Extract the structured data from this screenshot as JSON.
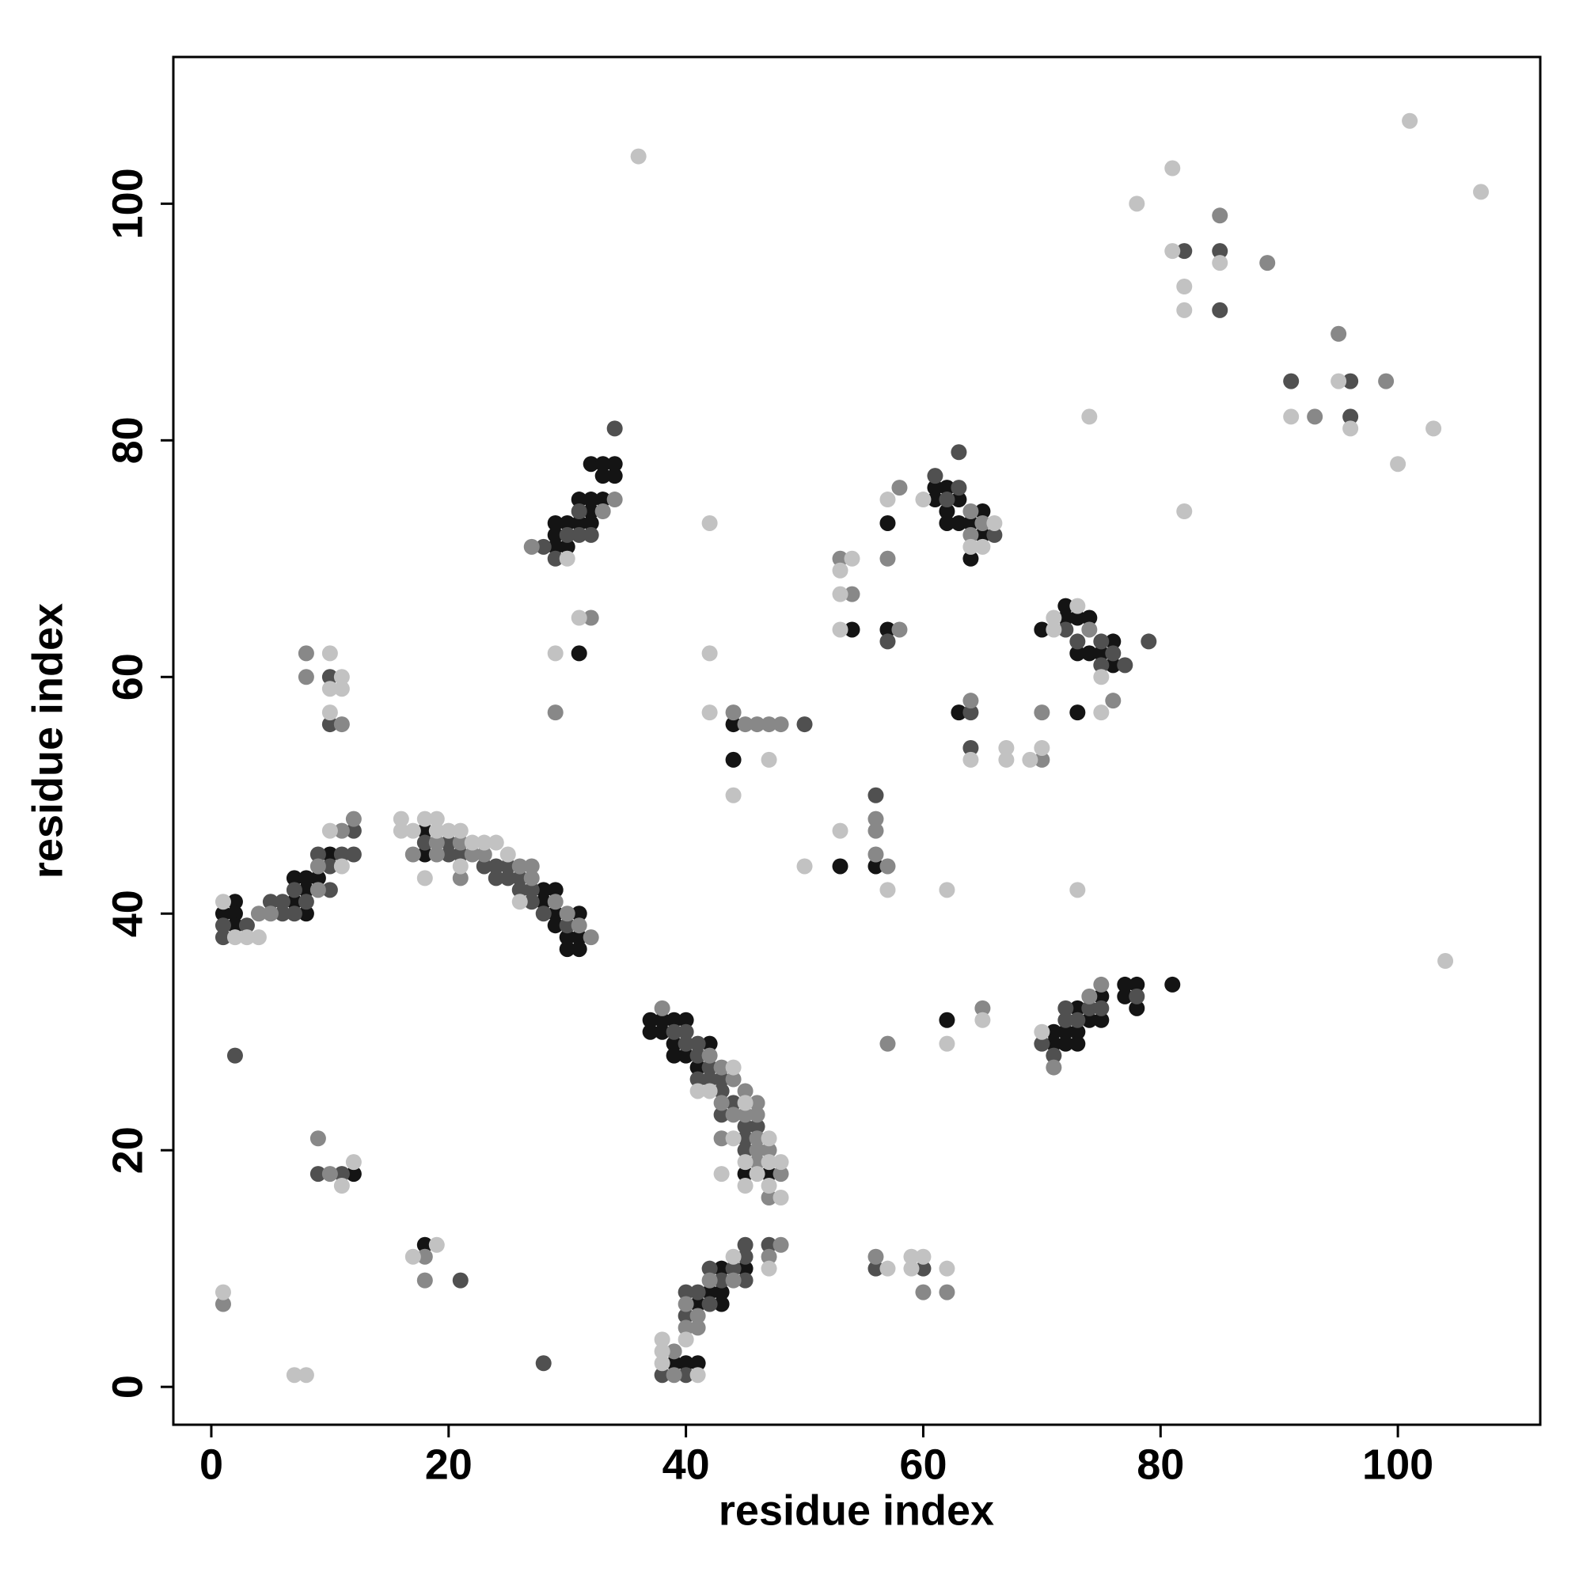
{
  "chart_data": {
    "type": "scatter",
    "x_label": "residue index",
    "y_label": "residue index",
    "xlim": [
      -3.2,
      112
    ],
    "ylim": [
      -3.2,
      112.4
    ],
    "xticks": [
      0,
      20,
      40,
      60,
      80,
      100
    ],
    "yticks": [
      0,
      20,
      40,
      60,
      80,
      100
    ],
    "series": [
      {
        "color": "#141414",
        "x": [
          1,
          2,
          2,
          2,
          7,
          7,
          8,
          8,
          8,
          9,
          10,
          18,
          18,
          28,
          28,
          29,
          29,
          29,
          30,
          30,
          31,
          31,
          31,
          12,
          18,
          29,
          29,
          29,
          30,
          30,
          31,
          31,
          32,
          32,
          32,
          32,
          33,
          33,
          33,
          34,
          34,
          31,
          37,
          37,
          38,
          38,
          39,
          39,
          39,
          40,
          40,
          41,
          42,
          45,
          47,
          39,
          40,
          41,
          41,
          42,
          43,
          43,
          43,
          45,
          44,
          44,
          54,
          53,
          56,
          57,
          57,
          61,
          61,
          62,
          62,
          62,
          63,
          63,
          64,
          64,
          65,
          65,
          62,
          63,
          70,
          72,
          72,
          73,
          73,
          73,
          74,
          74,
          75,
          76,
          76,
          71,
          71,
          72,
          72,
          73,
          73,
          73,
          74,
          75,
          75,
          77,
          77,
          78,
          78,
          81
        ],
        "y": [
          40,
          41,
          40,
          39,
          43,
          41,
          43,
          42,
          40,
          43,
          45,
          47,
          45,
          42,
          41,
          42,
          40,
          39,
          38,
          37,
          40,
          38,
          37,
          18,
          12,
          73,
          72,
          71,
          73,
          71,
          75,
          73,
          75,
          74,
          73,
          78,
          78,
          77,
          75,
          78,
          77,
          62,
          31,
          30,
          31,
          30,
          31,
          29,
          28,
          31,
          28,
          27,
          29,
          18,
          18,
          2,
          2,
          7,
          2,
          8,
          10,
          8,
          7,
          10,
          56,
          53,
          64,
          44,
          44,
          73,
          64,
          76,
          75,
          76,
          74,
          73,
          75,
          73,
          73,
          70,
          74,
          72,
          31,
          57,
          64,
          66,
          65,
          65,
          62,
          57,
          65,
          62,
          62,
          63,
          61,
          30,
          29,
          30,
          29,
          32,
          30,
          29,
          31,
          33,
          31,
          34,
          33,
          34,
          32,
          34
        ]
      },
      {
        "color": "#505050",
        "x": [
          1,
          1,
          3,
          5,
          6,
          6,
          7,
          7,
          8,
          9,
          10,
          10,
          11,
          12,
          12,
          18,
          20,
          20,
          21,
          23,
          24,
          24,
          25,
          25,
          26,
          26,
          27,
          27,
          28,
          30,
          10,
          10,
          2,
          9,
          11,
          21,
          28,
          28,
          29,
          30,
          31,
          31,
          32,
          34,
          39,
          40,
          40,
          41,
          41,
          41,
          42,
          42,
          43,
          43,
          43,
          44,
          45,
          45,
          45,
          46,
          38,
          40,
          40,
          40,
          41,
          42,
          42,
          43,
          44,
          45,
          45,
          45,
          47,
          50,
          56,
          57,
          61,
          62,
          63,
          63,
          66,
          60,
          56,
          64,
          64,
          72,
          73,
          75,
          75,
          76,
          77,
          79,
          70,
          71,
          72,
          72,
          73,
          74,
          75,
          78,
          82,
          85,
          85,
          91,
          96,
          96
        ],
        "y": [
          39,
          38,
          39,
          41,
          41,
          40,
          42,
          40,
          41,
          45,
          44,
          42,
          45,
          47,
          45,
          46,
          46,
          45,
          45,
          44,
          44,
          43,
          44,
          43,
          43,
          42,
          42,
          41,
          40,
          39,
          60,
          56,
          28,
          18,
          18,
          9,
          2,
          71,
          70,
          72,
          74,
          72,
          72,
          81,
          30,
          30,
          29,
          29,
          28,
          26,
          27,
          26,
          26,
          25,
          23,
          24,
          22,
          21,
          20,
          22,
          1,
          8,
          6,
          1,
          8,
          10,
          7,
          9,
          10,
          12,
          11,
          9,
          12,
          56,
          50,
          63,
          77,
          75,
          79,
          76,
          72,
          10,
          10,
          57,
          54,
          64,
          63,
          63,
          61,
          62,
          61,
          63,
          29,
          28,
          32,
          31,
          31,
          32,
          32,
          33,
          96,
          96,
          91,
          85,
          85,
          82
        ]
      },
      {
        "color": "#888888",
        "x": [
          4,
          5,
          9,
          9,
          11,
          12,
          17,
          19,
          19,
          21,
          21,
          22,
          23,
          26,
          27,
          27,
          29,
          30,
          31,
          32,
          8,
          8,
          11,
          1,
          9,
          10,
          18,
          18,
          29,
          27,
          33,
          34,
          32,
          38,
          42,
          43,
          43,
          43,
          44,
          44,
          45,
          45,
          46,
          46,
          46,
          46,
          46,
          47,
          47,
          48,
          39,
          39,
          40,
          40,
          41,
          41,
          42,
          44,
          47,
          48,
          44,
          45,
          46,
          47,
          48,
          53,
          54,
          56,
          56,
          56,
          57,
          57,
          58,
          58,
          57,
          64,
          64,
          65,
          60,
          56,
          62,
          65,
          64,
          70,
          70,
          74,
          76,
          71,
          74,
          75,
          85,
          89,
          93,
          95,
          99
        ],
        "y": [
          40,
          40,
          44,
          42,
          47,
          48,
          45,
          46,
          45,
          46,
          43,
          45,
          45,
          44,
          44,
          43,
          41,
          40,
          39,
          38,
          62,
          60,
          56,
          7,
          21,
          18,
          11,
          9,
          57,
          71,
          74,
          75,
          65,
          32,
          28,
          27,
          24,
          21,
          26,
          23,
          25,
          23,
          24,
          23,
          21,
          20,
          19,
          20,
          16,
          18,
          3,
          1,
          7,
          5,
          6,
          5,
          9,
          9,
          11,
          12,
          57,
          56,
          56,
          56,
          56,
          70,
          67,
          48,
          47,
          45,
          44,
          70,
          76,
          64,
          29,
          74,
          72,
          73,
          8,
          11,
          8,
          32,
          58,
          57,
          53,
          64,
          58,
          27,
          33,
          34,
          99,
          95,
          82,
          89,
          85
        ]
      },
      {
        "color": "#c2c2c2",
        "x": [
          1,
          2,
          3,
          4,
          10,
          11,
          16,
          16,
          17,
          18,
          18,
          19,
          19,
          20,
          21,
          21,
          22,
          23,
          24,
          25,
          26,
          10,
          10,
          10,
          11,
          11,
          11,
          12,
          1,
          7,
          8,
          17,
          19,
          30,
          31,
          29,
          36,
          41,
          42,
          43,
          44,
          44,
          45,
          45,
          45,
          46,
          47,
          47,
          47,
          48,
          48,
          38,
          38,
          38,
          40,
          41,
          44,
          47,
          42,
          42,
          42,
          44,
          47,
          50,
          53,
          53,
          53,
          54,
          53,
          57,
          57,
          60,
          64,
          65,
          66,
          60,
          59,
          59,
          57,
          62,
          62,
          62,
          65,
          64,
          67,
          67,
          69,
          70,
          71,
          71,
          73,
          75,
          75,
          73,
          70,
          74,
          78,
          81,
          81,
          82,
          82,
          82,
          85,
          91,
          95,
          96,
          100,
          101,
          103,
          104,
          107
        ],
        "y": [
          41,
          38,
          38,
          38,
          47,
          44,
          48,
          47,
          47,
          48,
          43,
          48,
          47,
          47,
          47,
          44,
          46,
          46,
          46,
          45,
          41,
          62,
          59,
          57,
          60,
          59,
          17,
          19,
          8,
          1,
          1,
          11,
          12,
          70,
          65,
          62,
          104,
          25,
          25,
          18,
          27,
          21,
          24,
          19,
          17,
          18,
          21,
          19,
          17,
          19,
          16,
          4,
          3,
          2,
          4,
          1,
          11,
          10,
          73,
          62,
          57,
          50,
          53,
          44,
          69,
          67,
          64,
          70,
          47,
          42,
          75,
          75,
          71,
          71,
          73,
          11,
          11,
          10,
          10,
          10,
          42,
          29,
          31,
          53,
          54,
          53,
          53,
          54,
          65,
          64,
          66,
          60,
          57,
          42,
          30,
          82,
          100,
          103,
          96,
          93,
          91,
          74,
          95,
          82,
          85,
          81,
          78,
          107,
          81,
          36,
          101
        ]
      }
    ]
  }
}
